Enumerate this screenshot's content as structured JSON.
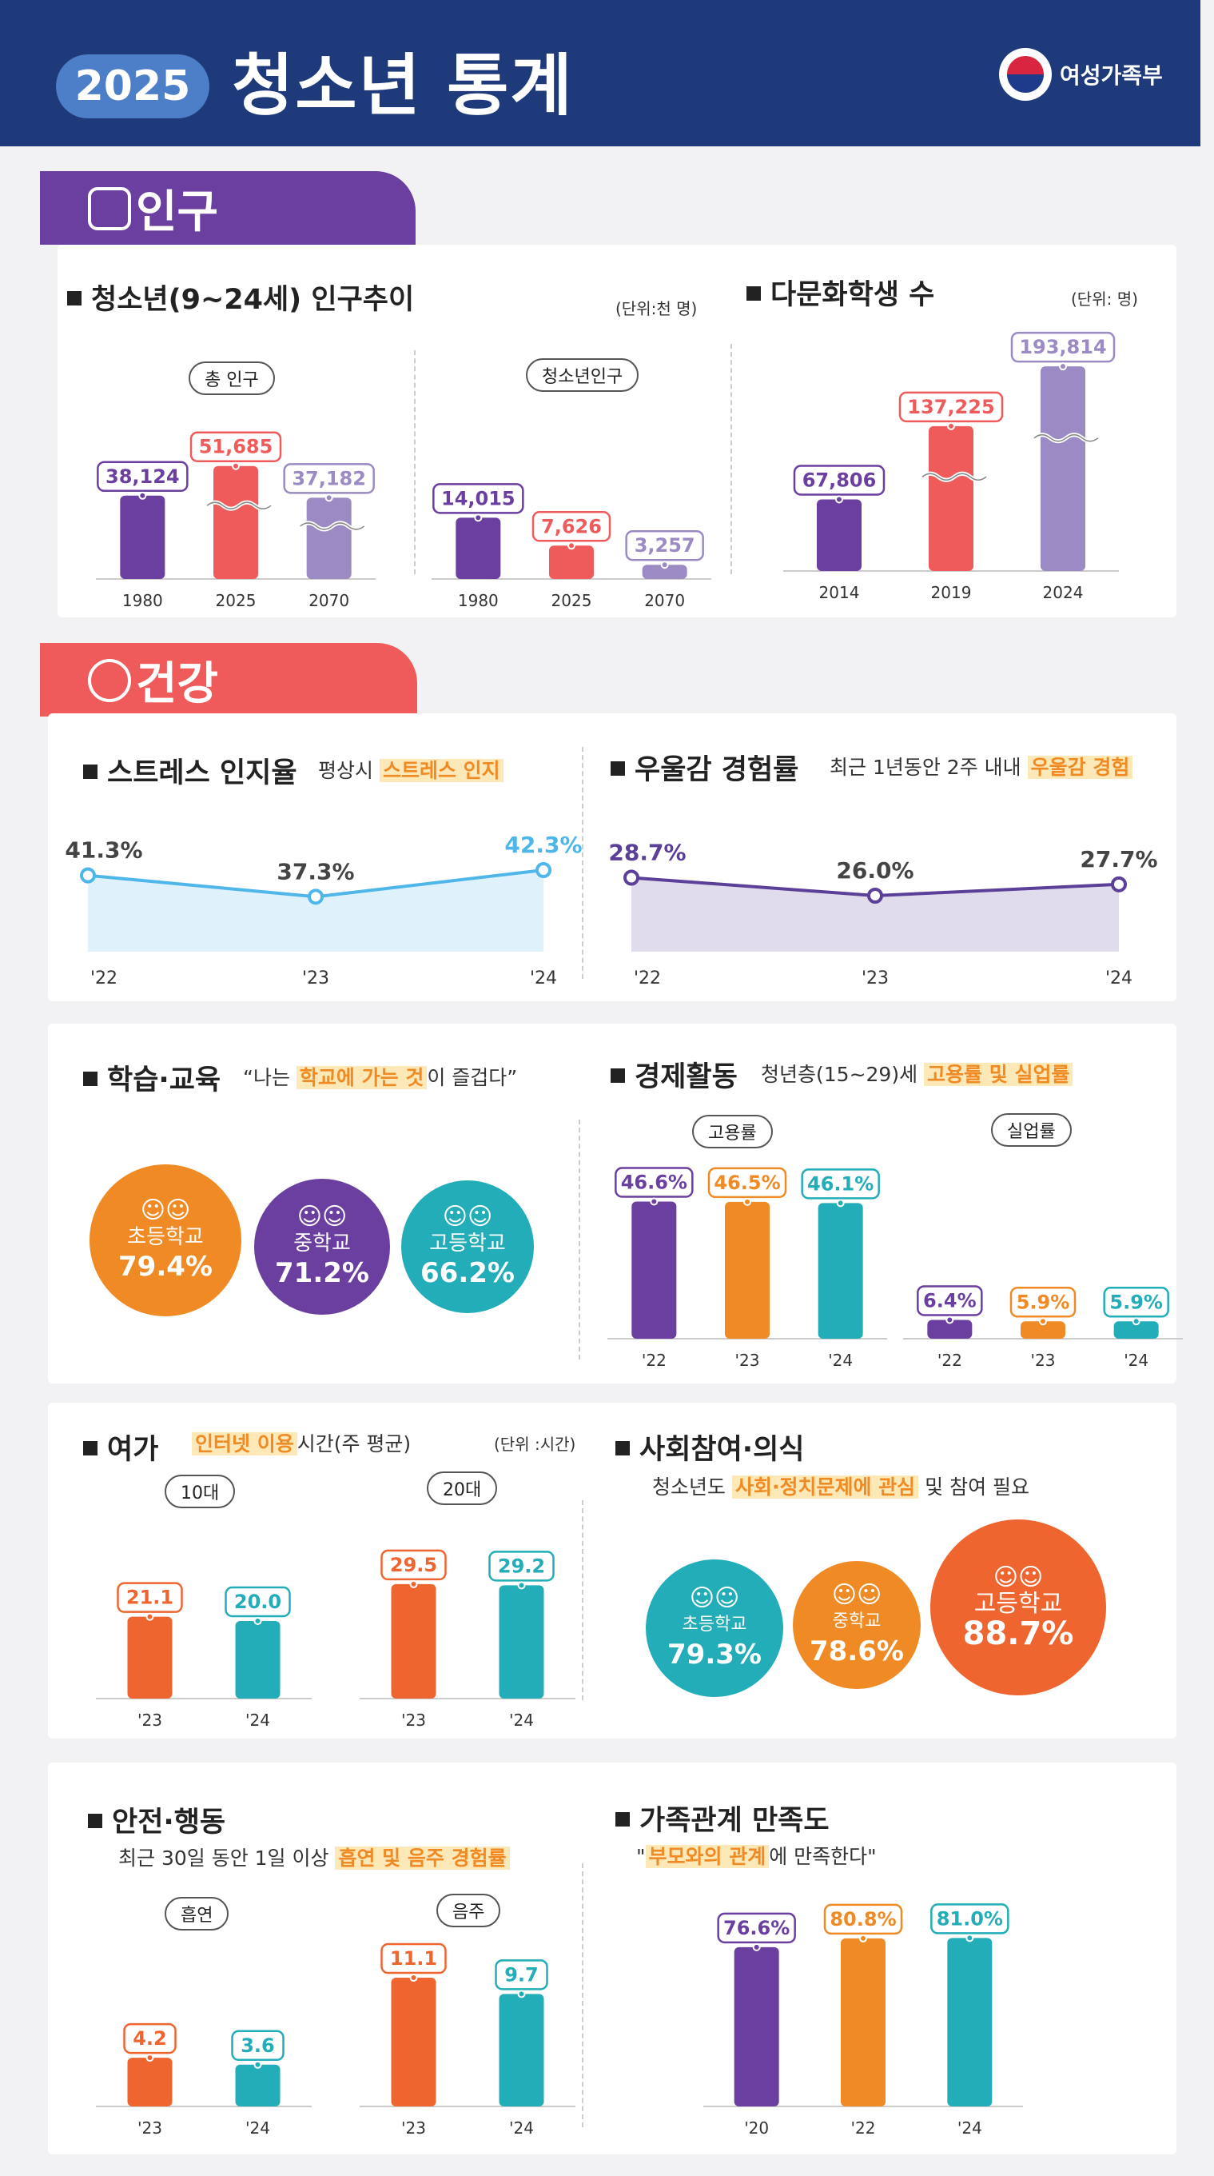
{
  "header": {
    "year": "2025",
    "title": "청소년 통계",
    "ministry": "여성가족부",
    "accent": "#1e3a7b"
  },
  "population": {
    "section_title": "인구",
    "youth_trend": {
      "title": "청소년(9~24세) 인구추이",
      "unit": "(단위:천 명)",
      "total_label": "총 인구",
      "youth_label": "청소년인구"
    },
    "multicultural": {
      "title": "다문화학생 수",
      "unit": "(단위: 명)"
    }
  },
  "health": {
    "section_title": "건강",
    "stress": {
      "title": "스트레스 인지율",
      "desc_prefix": "평상시",
      "desc_highlight": "스트레스 인지"
    },
    "depression": {
      "title": "우울감 경험률",
      "desc_prefix": "최근 1년동안 2주 내내",
      "desc_highlight": "우울감 경험"
    }
  },
  "education": {
    "title": "학습·교육",
    "quote_open": "“나는",
    "quote_highlight": "학교에 가는 것",
    "quote_close": "이 즐겁다”",
    "items": [
      {
        "label": "초등학교",
        "value": "79.4%",
        "color": "#f08a24"
      },
      {
        "label": "중학교",
        "value": "71.2%",
        "color": "#6b3fa0"
      },
      {
        "label": "고등학교",
        "value": "66.2%",
        "color": "#22adb8"
      }
    ]
  },
  "economy": {
    "title": "경제활동",
    "desc_prefix": "청년층(15~29)세",
    "desc_highlight": "고용률 및 실업률",
    "employment_label": "고용률",
    "unemployment_label": "실업률"
  },
  "leisure": {
    "title": "여가",
    "desc_highlight": "인터넷 이용",
    "desc_suffix": "시간(주 평균)",
    "unit": "(단위 :시간)",
    "teens_label": "10대",
    "twenties_label": "20대"
  },
  "social": {
    "title": "사회참여·의식",
    "desc_prefix": "청소년도",
    "desc_highlight": "사회·정치문제에 관심",
    "desc_suffix": "및 참여 필요",
    "items": [
      {
        "label": "초등학교",
        "value": "79.3%",
        "color": "#22adb8"
      },
      {
        "label": "중학교",
        "value": "78.6%",
        "color": "#f08a24"
      },
      {
        "label": "고등학교",
        "value": "88.7%",
        "color": "#ef6530"
      }
    ]
  },
  "safety": {
    "title": "안전·행동",
    "desc_prefix": "최근 30일 동안 1일 이상",
    "desc_highlight": "흡연 및 음주 경험률",
    "smoking_label": "흡연",
    "drinking_label": "음주"
  },
  "family": {
    "title": "가족관계 만족도",
    "quote_open": "\"",
    "quote_highlight": "부모와의 관계",
    "quote_close": "에 만족한다\""
  },
  "chart_data": [
    {
      "id": "total_pop",
      "type": "bar",
      "title": "총 인구",
      "categories": [
        "1980",
        "2025",
        "2070"
      ],
      "values": [
        38124,
        51685,
        37182
      ],
      "labels": [
        "38,124",
        "51,685",
        "37,182"
      ],
      "colors": [
        "#6b3fa0",
        "#ef5b5b",
        "#9b8ac4"
      ],
      "ylim": [
        0,
        60000
      ],
      "axis_break": true
    },
    {
      "id": "youth_pop",
      "type": "bar",
      "title": "청소년인구",
      "categories": [
        "1980",
        "2025",
        "2070"
      ],
      "values": [
        14015,
        7626,
        3257
      ],
      "labels": [
        "14,015",
        "7,626",
        "3,257"
      ],
      "colors": [
        "#6b3fa0",
        "#ef5b5b",
        "#9b8ac4"
      ],
      "ylim": [
        0,
        30000
      ]
    },
    {
      "id": "multicultural",
      "type": "bar",
      "title": "다문화학생 수",
      "categories": [
        "2014",
        "2019",
        "2024"
      ],
      "values": [
        67806,
        137225,
        193814
      ],
      "labels": [
        "67,806",
        "137,225",
        "193,814"
      ],
      "colors": [
        "#6b3fa0",
        "#ef5b5b",
        "#9b8ac4"
      ],
      "ylim": [
        0,
        200000
      ],
      "axis_break": true
    },
    {
      "id": "stress",
      "type": "area",
      "title": "스트레스 인지율",
      "categories": [
        "'22",
        "'23",
        "'24"
      ],
      "values": [
        41.3,
        37.3,
        42.3
      ],
      "labels": [
        "41.3%",
        "37.3%",
        "42.3%"
      ],
      "colors": [
        "#444444",
        "#444444",
        "#4fb6ea"
      ],
      "line_color": "#4fb6ea",
      "ylim": [
        30,
        45
      ]
    },
    {
      "id": "depression",
      "type": "area",
      "title": "우울감 경험률",
      "categories": [
        "'22",
        "'23",
        "'24"
      ],
      "values": [
        28.7,
        26.0,
        27.7
      ],
      "labels": [
        "28.7%",
        "26.0%",
        "27.7%"
      ],
      "colors": [
        "#5b3f98",
        "#444444",
        "#444444"
      ],
      "line_color": "#5b3f98",
      "ylim": [
        20,
        32
      ]
    },
    {
      "id": "employment",
      "type": "bar",
      "title": "고용률",
      "categories": [
        "'22",
        "'23",
        "'24"
      ],
      "values": [
        46.6,
        46.5,
        46.1
      ],
      "labels": [
        "46.6%",
        "46.5%",
        "46.1%"
      ],
      "colors": [
        "#6b3fa0",
        "#f08a24",
        "#22adb8"
      ],
      "ylim": [
        0,
        50
      ]
    },
    {
      "id": "unemployment",
      "type": "bar",
      "title": "실업률",
      "categories": [
        "'22",
        "'23",
        "'24"
      ],
      "values": [
        6.4,
        5.9,
        5.9
      ],
      "labels": [
        "6.4%",
        "5.9%",
        "5.9%"
      ],
      "colors": [
        "#6b3fa0",
        "#f08a24",
        "#22adb8"
      ],
      "ylim": [
        0,
        50
      ]
    },
    {
      "id": "internet_teens",
      "type": "bar",
      "title": "10대",
      "categories": [
        "'23",
        "'24"
      ],
      "values": [
        21.1,
        20.0
      ],
      "labels": [
        "21.1",
        "20.0"
      ],
      "colors": [
        "#ef6530",
        "#22adb8"
      ],
      "ylim": [
        0,
        40
      ]
    },
    {
      "id": "internet_twenties",
      "type": "bar",
      "title": "20대",
      "categories": [
        "'23",
        "'24"
      ],
      "values": [
        29.5,
        29.2
      ],
      "labels": [
        "29.5",
        "29.2"
      ],
      "colors": [
        "#ef6530",
        "#22adb8"
      ],
      "ylim": [
        0,
        40
      ]
    },
    {
      "id": "smoking",
      "type": "bar",
      "title": "흡연",
      "categories": [
        "'23",
        "'24"
      ],
      "values": [
        4.2,
        3.6
      ],
      "labels": [
        "4.2",
        "3.6"
      ],
      "colors": [
        "#ef6530",
        "#22adb8"
      ],
      "ylim": [
        0,
        12
      ]
    },
    {
      "id": "drinking",
      "type": "bar",
      "title": "음주",
      "categories": [
        "'23",
        "'24"
      ],
      "values": [
        11.1,
        9.7
      ],
      "labels": [
        "11.1",
        "9.7"
      ],
      "colors": [
        "#ef6530",
        "#22adb8"
      ],
      "ylim": [
        0,
        12
      ]
    },
    {
      "id": "family_satisfaction",
      "type": "bar",
      "title": "가족관계 만족도",
      "categories": [
        "'20",
        "'22",
        "'24"
      ],
      "values": [
        76.6,
        80.8,
        81.0
      ],
      "labels": [
        "76.6%",
        "80.8%",
        "81.0%"
      ],
      "colors": [
        "#6b3fa0",
        "#f08a24",
        "#22adb8"
      ],
      "ylim": [
        0,
        90
      ]
    }
  ]
}
